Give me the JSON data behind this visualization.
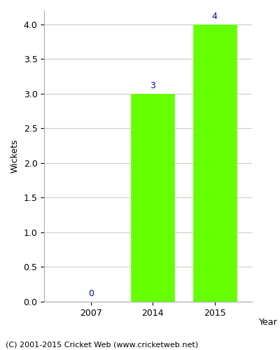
{
  "categories": [
    "2007",
    "2014",
    "2015"
  ],
  "values": [
    0,
    3,
    4
  ],
  "bar_color": "#66ff00",
  "bar_edgecolor": "#66ff00",
  "label_color": "#0000aa",
  "label_fontsize": 9,
  "ylabel": "Wickets",
  "xlabel": "Year",
  "ylim": [
    0.0,
    4.2
  ],
  "yticks": [
    0.0,
    0.5,
    1.0,
    1.5,
    2.0,
    2.5,
    3.0,
    3.5,
    4.0
  ],
  "grid_color": "#cccccc",
  "background_color": "#ffffff",
  "footer_text": "(C) 2001-2015 Cricket Web (www.cricketweb.net)",
  "footer_fontsize": 8,
  "bar_width": 0.7,
  "title": ""
}
